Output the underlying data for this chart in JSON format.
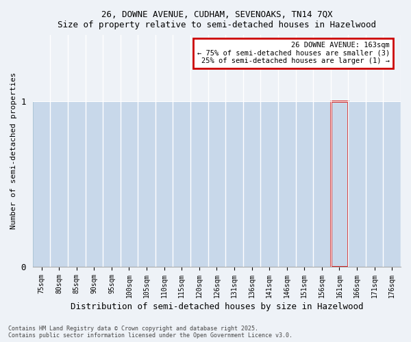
{
  "title_line1": "26, DOWNE AVENUE, CUDHAM, SEVENOAKS, TN14 7QX",
  "title_line2": "Size of property relative to semi-detached houses in Hazelwood",
  "xlabel": "Distribution of semi-detached houses by size in Hazelwood",
  "ylabel": "Number of semi-detached properties",
  "categories": [
    "75sqm",
    "80sqm",
    "85sqm",
    "90sqm",
    "95sqm",
    "100sqm",
    "105sqm",
    "110sqm",
    "115sqm",
    "120sqm",
    "126sqm",
    "131sqm",
    "136sqm",
    "141sqm",
    "146sqm",
    "151sqm",
    "156sqm",
    "161sqm",
    "166sqm",
    "171sqm",
    "176sqm"
  ],
  "values": [
    1,
    1,
    1,
    1,
    1,
    1,
    1,
    1,
    1,
    1,
    1,
    1,
    1,
    1,
    1,
    1,
    1,
    1,
    1,
    1,
    1
  ],
  "bar_color": "#c8d8ea",
  "bar_edge_color": "#9ab8cc",
  "highlight_index": 17,
  "highlight_color": "#c8d8ea",
  "highlight_edge_color": "#cc0000",
  "annotation_text": "26 DOWNE AVENUE: 163sqm\n← 75% of semi-detached houses are smaller (3)\n25% of semi-detached houses are larger (1) →",
  "annotation_box_facecolor": "#ffffff",
  "annotation_box_edgecolor": "#cc0000",
  "ylim": [
    0,
    1.4
  ],
  "yticks": [
    0,
    1
  ],
  "footer_line1": "Contains HM Land Registry data © Crown copyright and database right 2025.",
  "footer_line2": "Contains public sector information licensed under the Open Government Licence v3.0.",
  "background_color": "#eef2f7",
  "plot_background": "#eef2f7",
  "fig_width": 6.0,
  "fig_height": 5.0,
  "dpi": 100
}
